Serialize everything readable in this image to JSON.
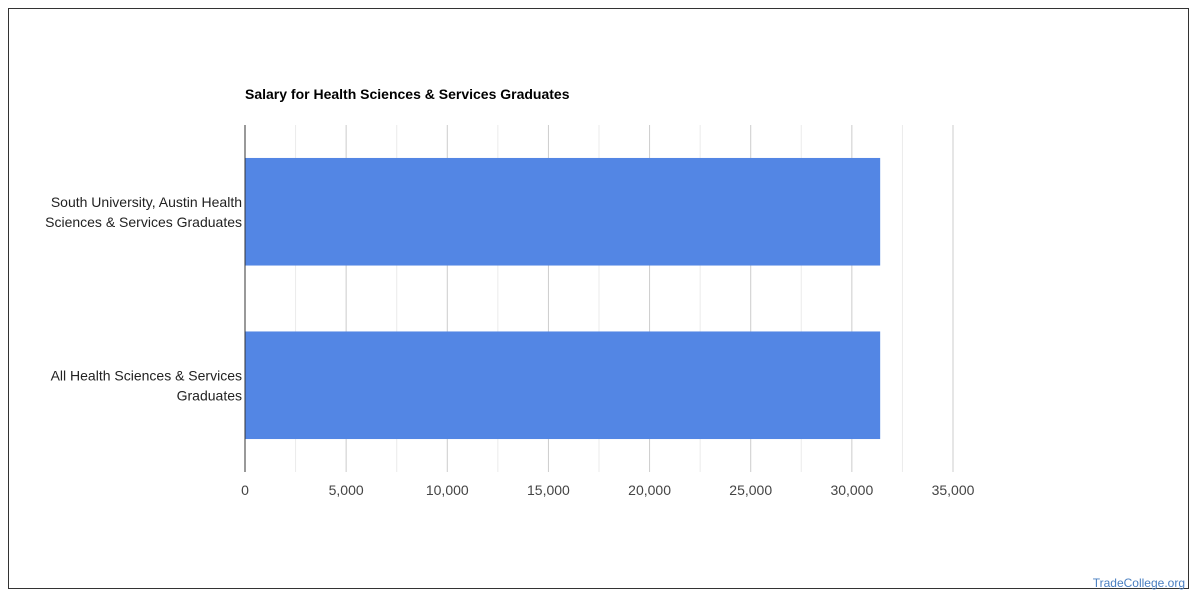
{
  "chart_data": {
    "type": "bar",
    "orientation": "horizontal",
    "title": "Salary for Health Sciences & Services Graduates",
    "categories": [
      [
        "South University, Austin Health",
        "Sciences & Services Graduates"
      ],
      [
        "All Health Sciences & Services",
        "Graduates"
      ]
    ],
    "values": [
      31400,
      31400
    ],
    "xlim": [
      0,
      35000
    ],
    "xticks": [
      0,
      5000,
      10000,
      15000,
      20000,
      25000,
      30000,
      35000
    ],
    "xtick_labels": [
      "0",
      "5,000",
      "10,000",
      "15,000",
      "20,000",
      "25,000",
      "30,000",
      "35,000"
    ],
    "grid": true,
    "bar_color": "#5386e4",
    "legend": "none"
  },
  "watermark": "TradeCollege.org"
}
